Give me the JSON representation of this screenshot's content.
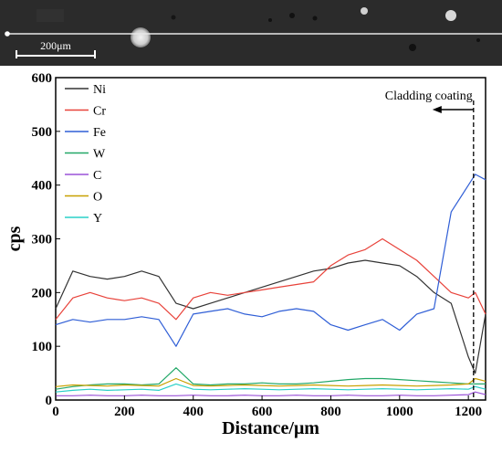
{
  "micrograph": {
    "scale_label": "200μm"
  },
  "chart_data": {
    "type": "line",
    "xlabel": "Distance/μm",
    "ylabel": "cps",
    "xlim": [
      0,
      1250
    ],
    "ylim": [
      0,
      600
    ],
    "xticks": [
      "0",
      "200",
      "400",
      "600",
      "800",
      "1000",
      "1200"
    ],
    "yticks": [
      "0",
      "100",
      "200",
      "300",
      "400",
      "500",
      "600"
    ],
    "legend_position": "top-left",
    "annotation": {
      "text": "Cladding coating",
      "x": 1215,
      "arrow": "left"
    },
    "series": [
      {
        "name": "Ni",
        "color": "#333333",
        "x": [
          0,
          50,
          100,
          150,
          200,
          250,
          300,
          350,
          400,
          450,
          500,
          550,
          600,
          650,
          700,
          750,
          800,
          850,
          900,
          950,
          1000,
          1050,
          1100,
          1150,
          1200,
          1220,
          1250
        ],
        "values": [
          170,
          240,
          230,
          225,
          230,
          240,
          230,
          180,
          170,
          180,
          190,
          200,
          210,
          220,
          230,
          240,
          245,
          255,
          260,
          255,
          250,
          230,
          200,
          180,
          80,
          50,
          160
        ]
      },
      {
        "name": "Cr",
        "color": "#e8423a",
        "x": [
          0,
          50,
          100,
          150,
          200,
          250,
          300,
          350,
          400,
          450,
          500,
          550,
          600,
          650,
          700,
          750,
          800,
          850,
          900,
          950,
          1000,
          1050,
          1100,
          1150,
          1200,
          1220,
          1250
        ],
        "values": [
          150,
          190,
          200,
          190,
          185,
          190,
          180,
          150,
          190,
          200,
          195,
          200,
          205,
          210,
          215,
          220,
          250,
          270,
          280,
          300,
          280,
          260,
          230,
          200,
          190,
          200,
          160
        ]
      },
      {
        "name": "Fe",
        "color": "#2f5ed6",
        "x": [
          0,
          50,
          100,
          150,
          200,
          250,
          300,
          350,
          400,
          450,
          500,
          550,
          600,
          650,
          700,
          750,
          800,
          850,
          900,
          950,
          1000,
          1050,
          1100,
          1150,
          1200,
          1220,
          1250
        ],
        "values": [
          140,
          150,
          145,
          150,
          150,
          155,
          150,
          100,
          160,
          165,
          170,
          160,
          155,
          165,
          170,
          165,
          140,
          130,
          140,
          150,
          130,
          160,
          170,
          350,
          400,
          420,
          410
        ]
      },
      {
        "name": "W",
        "color": "#22a868",
        "x": [
          0,
          50,
          100,
          150,
          200,
          250,
          300,
          350,
          400,
          450,
          500,
          550,
          600,
          650,
          700,
          750,
          800,
          850,
          900,
          950,
          1000,
          1050,
          1100,
          1150,
          1200,
          1220,
          1250
        ],
        "values": [
          20,
          25,
          28,
          30,
          30,
          28,
          30,
          60,
          30,
          28,
          30,
          30,
          32,
          30,
          30,
          32,
          35,
          38,
          40,
          40,
          38,
          36,
          34,
          32,
          30,
          30,
          30
        ]
      },
      {
        "name": "C",
        "color": "#9a52d8",
        "x": [
          0,
          50,
          100,
          150,
          200,
          250,
          300,
          350,
          400,
          450,
          500,
          550,
          600,
          650,
          700,
          750,
          800,
          850,
          900,
          950,
          1000,
          1050,
          1100,
          1150,
          1200,
          1220,
          1250
        ],
        "values": [
          8,
          8,
          9,
          8,
          8,
          9,
          8,
          8,
          9,
          8,
          8,
          9,
          8,
          8,
          9,
          8,
          8,
          9,
          8,
          8,
          9,
          8,
          8,
          9,
          10,
          15,
          10
        ]
      },
      {
        "name": "O",
        "color": "#c8a000",
        "x": [
          0,
          50,
          100,
          150,
          200,
          250,
          300,
          350,
          400,
          450,
          500,
          550,
          600,
          650,
          700,
          750,
          800,
          850,
          900,
          950,
          1000,
          1050,
          1100,
          1150,
          1200,
          1220,
          1250
        ],
        "values": [
          25,
          28,
          27,
          26,
          28,
          27,
          26,
          40,
          27,
          26,
          27,
          28,
          27,
          26,
          27,
          28,
          27,
          26,
          27,
          28,
          27,
          26,
          27,
          28,
          30,
          40,
          35
        ]
      },
      {
        "name": "Y",
        "color": "#2ad0c8",
        "x": [
          0,
          50,
          100,
          150,
          200,
          250,
          300,
          350,
          400,
          450,
          500,
          550,
          600,
          650,
          700,
          750,
          800,
          850,
          900,
          950,
          1000,
          1050,
          1100,
          1150,
          1200,
          1220,
          1250
        ],
        "values": [
          15,
          18,
          20,
          18,
          19,
          20,
          18,
          30,
          20,
          19,
          20,
          21,
          20,
          19,
          20,
          21,
          20,
          19,
          20,
          21,
          20,
          19,
          20,
          21,
          20,
          25,
          20
        ]
      }
    ]
  }
}
